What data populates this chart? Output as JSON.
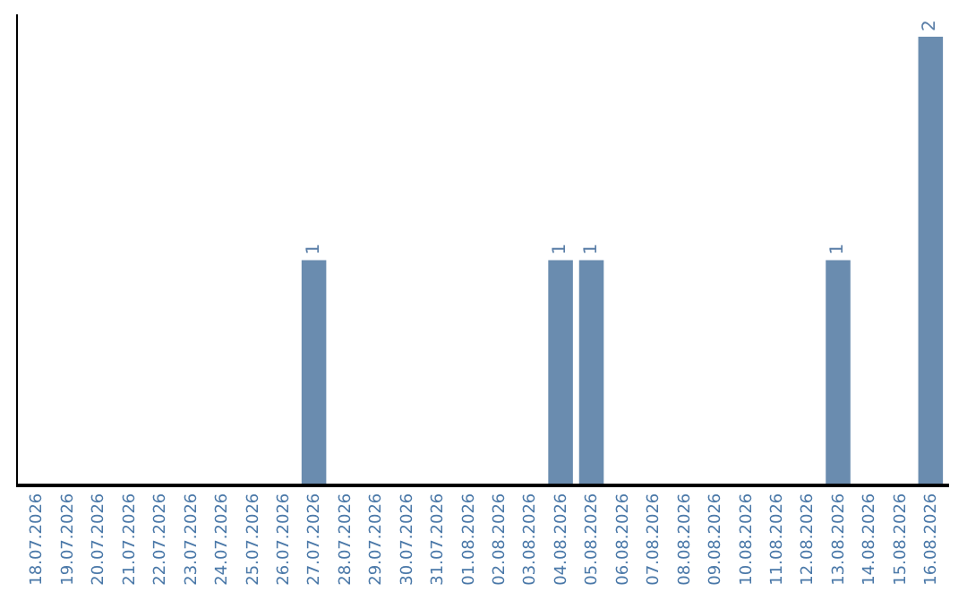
{
  "chart_data": {
    "type": "bar",
    "categories": [
      "18.07.2026",
      "19.07.2026",
      "20.07.2026",
      "21.07.2026",
      "22.07.2026",
      "23.07.2026",
      "24.07.2026",
      "25.07.2026",
      "26.07.2026",
      "27.07.2026",
      "28.07.2026",
      "29.07.2026",
      "30.07.2026",
      "31.07.2026",
      "01.08.2026",
      "02.08.2026",
      "03.08.2026",
      "04.08.2026",
      "05.08.2026",
      "06.08.2026",
      "07.08.2026",
      "08.08.2026",
      "09.08.2026",
      "10.08.2026",
      "11.08.2026",
      "12.08.2026",
      "13.08.2026",
      "14.08.2026",
      "15.08.2026",
      "16.08.2026"
    ],
    "values": [
      0,
      0,
      0,
      0,
      0,
      0,
      0,
      0,
      0,
      1,
      0,
      0,
      0,
      0,
      0,
      0,
      0,
      1,
      1,
      0,
      0,
      0,
      0,
      0,
      0,
      0,
      1,
      0,
      0,
      2
    ],
    "value_labels": [
      null,
      null,
      null,
      null,
      null,
      null,
      null,
      null,
      null,
      "1",
      null,
      null,
      null,
      null,
      null,
      null,
      null,
      "1",
      "1",
      null,
      null,
      null,
      null,
      null,
      null,
      null,
      "1",
      null,
      null,
      "2"
    ],
    "color": "#6a8caf",
    "ylim": [
      0,
      2.1
    ],
    "tick_labels": "x"
  }
}
